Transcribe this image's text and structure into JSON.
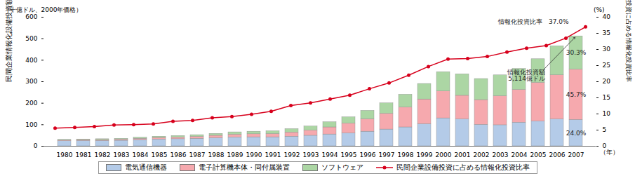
{
  "chart_data": {
    "type": "bar",
    "stacked": true,
    "legend": "bottom",
    "xlabel": "（年）",
    "ylabel": "民間企業情報化設備投資額",
    "y_unit_label": "（十億ドル、2000年価格）",
    "y2label": "民間企業設備投資に占める情報化投資比率",
    "y2_unit_label": "(%)",
    "categories": [
      "1980",
      "1981",
      "1982",
      "1983",
      "1984",
      "1985",
      "1986",
      "1987",
      "1988",
      "1989",
      "1990",
      "1991",
      "1992",
      "1993",
      "1994",
      "1995",
      "1996",
      "1997",
      "1998",
      "1999",
      "2000",
      "2001",
      "2002",
      "2003",
      "2004",
      "2005",
      "2006",
      "2007"
    ],
    "ylim": [
      0,
      600
    ],
    "yticks": [
      0,
      100,
      200,
      300,
      400,
      500,
      600
    ],
    "y2lim": [
      0,
      40
    ],
    "y2ticks": [
      0,
      5,
      10,
      15,
      20,
      25,
      30,
      35,
      40
    ],
    "series": [
      {
        "name": "電気通信機器",
        "color": "#b4cbe8",
        "type": "bar",
        "values": [
          24,
          25,
          25,
          26,
          29,
          32,
          33,
          35,
          38,
          41,
          42,
          42,
          45,
          49,
          55,
          60,
          68,
          78,
          88,
          103,
          130,
          125,
          100,
          98,
          110,
          115,
          125,
          122.7
        ]
      },
      {
        "name": "電子計算機本体・同付属装置",
        "color": "#f6a9ae",
        "type": "bar",
        "values": [
          3,
          4,
          4,
          5,
          6,
          7,
          8,
          9,
          11,
          13,
          14,
          15,
          19,
          24,
          33,
          45,
          58,
          73,
          92,
          115,
          125,
          110,
          115,
          135,
          152,
          180,
          205,
          233.7
        ]
      },
      {
        "name": "ソフトウェア",
        "color": "#acd6a4",
        "type": "bar",
        "values": [
          3,
          3,
          4,
          4,
          5,
          6,
          7,
          8,
          9,
          11,
          12,
          13,
          16,
          19,
          24,
          30,
          39,
          49,
          60,
          72,
          90,
          100,
          98,
          97,
          98,
          110,
          135,
          155.0
        ]
      },
      {
        "name": "民間企業設備投資に占める情報化投資比率",
        "color": "#d7001c",
        "type": "line",
        "axis": "y2",
        "marker": "circle",
        "values": [
          5.6,
          5.8,
          6.1,
          6.6,
          6.7,
          6.9,
          7.7,
          8.0,
          8.8,
          9.2,
          9.9,
          10.8,
          12.6,
          13.4,
          14.6,
          15.8,
          17.8,
          19.6,
          22.0,
          24.7,
          27.0,
          27.2,
          27.8,
          29.2,
          30.4,
          31.2,
          33.5,
          37.0
        ]
      }
    ],
    "annotations": [
      {
        "text": "情報化投資比率　37.0%",
        "x": "2006",
        "y": 38.5,
        "axis": "y2"
      },
      {
        "text": "情報化投資額\n5,114億ドル",
        "x": "2005",
        "y": 330,
        "axis": "y",
        "target_x": "2007",
        "target_y": 511.4
      },
      {
        "text": "30.3%",
        "x": "2007",
        "y": 434,
        "axis": "y"
      },
      {
        "text": "45.7%",
        "x": "2007",
        "y": 240,
        "axis": "y"
      },
      {
        "text": "24.0%",
        "x": "2007",
        "y": 61,
        "axis": "y"
      }
    ]
  }
}
